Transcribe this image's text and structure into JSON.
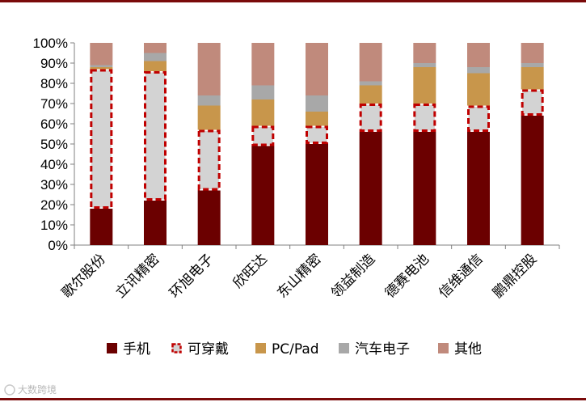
{
  "colors": {
    "手机": "#6b0000",
    "可穿戴": "#d3d3d3",
    "可穿戴_border": "#c00000",
    "PC/Pad": "#c8964b",
    "汽车电子": "#a8a8a8",
    "其他": "#c08a7c",
    "axis": "#808080",
    "rule": "#7a0a0a"
  },
  "watermark": "大数跨境",
  "chart_data": {
    "type": "bar",
    "stacked": true,
    "categories": [
      "歌尔股份",
      "立讯精密",
      "环旭电子",
      "欣旺达",
      "东山精密",
      "领益制造",
      "德赛电池",
      "信维通信",
      "鹏鼎控股"
    ],
    "series": [
      {
        "name": "手机",
        "values": [
          18,
          22,
          27,
          49,
          50,
          56,
          56,
          56,
          64
        ]
      },
      {
        "name": "可穿戴",
        "values": [
          69,
          64,
          30,
          10,
          9,
          14,
          14,
          13,
          13
        ]
      },
      {
        "name": "PC/Pad",
        "values": [
          1,
          5,
          12,
          13,
          7,
          9,
          18,
          16,
          11
        ]
      },
      {
        "name": "汽车电子",
        "values": [
          1,
          4,
          5,
          7,
          8,
          2,
          2,
          3,
          2
        ]
      },
      {
        "name": "其他",
        "values": [
          11,
          5,
          26,
          21,
          26,
          19,
          10,
          12,
          10
        ]
      }
    ],
    "y_ticks": [
      "0%",
      "10%",
      "20%",
      "30%",
      "40%",
      "50%",
      "60%",
      "70%",
      "80%",
      "90%",
      "100%"
    ],
    "ylim": [
      0,
      100
    ],
    "legend": [
      "手机",
      "可穿戴",
      "PC/Pad",
      "汽车电子",
      "其他"
    ],
    "legend_position": "bottom",
    "grid": false
  }
}
